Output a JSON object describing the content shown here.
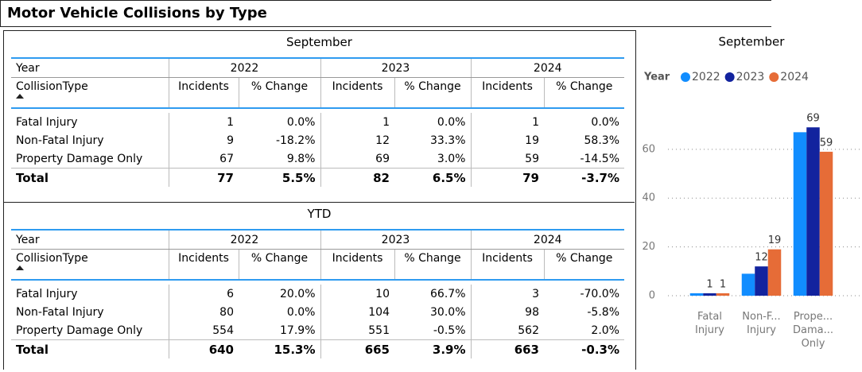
{
  "header": {
    "title": "Motor Vehicle Collisions by Type"
  },
  "tables": [
    {
      "title": "September",
      "year_label": "Year",
      "collision_label": "CollisionType",
      "years": [
        "2022",
        "2023",
        "2024"
      ],
      "columns": [
        "Incidents",
        "% Change",
        "Incidents",
        "% Change",
        "Incidents",
        "% Change"
      ],
      "rows": [
        [
          "Fatal Injury",
          "1",
          "0.0%",
          "1",
          "0.0%",
          "1",
          "0.0%"
        ],
        [
          "Non-Fatal Injury",
          "9",
          "-18.2%",
          "12",
          "33.3%",
          "19",
          "58.3%"
        ],
        [
          "Property Damage Only",
          "67",
          "9.8%",
          "69",
          "3.0%",
          "59",
          "-14.5%"
        ]
      ],
      "total": [
        "Total",
        "77",
        "5.5%",
        "82",
        "6.5%",
        "79",
        "-3.7%"
      ]
    },
    {
      "title": "YTD",
      "year_label": "Year",
      "collision_label": "CollisionType",
      "years": [
        "2022",
        "2023",
        "2024"
      ],
      "columns": [
        "Incidents",
        "% Change",
        "Incidents",
        "% Change",
        "Incidents",
        "% Change"
      ],
      "rows": [
        [
          "Fatal Injury",
          "6",
          "20.0%",
          "10",
          "66.7%",
          "3",
          "-70.0%"
        ],
        [
          "Non-Fatal Injury",
          "80",
          "0.0%",
          "104",
          "30.0%",
          "98",
          "-5.8%"
        ],
        [
          "Property Damage Only",
          "554",
          "17.9%",
          "551",
          "-0.5%",
          "562",
          "2.0%"
        ]
      ],
      "total": [
        "Total",
        "640",
        "15.3%",
        "665",
        "3.9%",
        "663",
        "-0.3%"
      ]
    }
  ],
  "chart_data": {
    "type": "bar",
    "title": "September",
    "legend_title": "Year",
    "categories": [
      "Fatal Injury",
      "Non-F... Injury",
      "Prope... Dama... Only"
    ],
    "series": [
      {
        "name": "2022",
        "color": "#118dff",
        "values": [
          1,
          9,
          67
        ]
      },
      {
        "name": "2023",
        "color": "#12239e",
        "values": [
          1,
          12,
          69
        ],
        "value_labels": [
          "1",
          "12",
          "69"
        ]
      },
      {
        "name": "2024",
        "color": "#e66c37",
        "values": [
          1,
          19,
          59
        ],
        "value_labels": [
          "1",
          "19",
          "59"
        ]
      }
    ],
    "ylim": [
      0,
      72
    ],
    "yticks": [
      0,
      20,
      40,
      60
    ],
    "grid": true
  }
}
